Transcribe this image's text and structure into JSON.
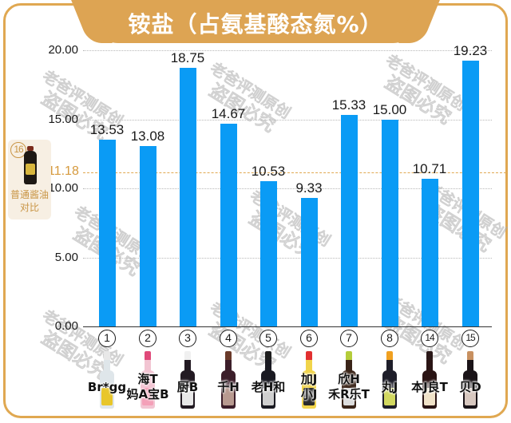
{
  "title": "铵盐（占氨基酸态氮%）",
  "watermark": {
    "line1": "老爸评测原创",
    "line2": "盗图必究"
  },
  "reference": {
    "number": "16",
    "label_line1": "普通酱油",
    "label_line2": "对比",
    "value": 11.18,
    "value_label": "11.18",
    "color": "#d69a3e"
  },
  "colors": {
    "bar": "#0a9bf5",
    "frame": "#e0a851",
    "title_bg": "#dda453"
  },
  "chart_data": {
    "type": "bar",
    "title": "铵盐（占氨基酸态氮%）",
    "xlabel": "",
    "ylabel": "",
    "ylim": [
      0,
      20
    ],
    "yticks": [
      "0.00",
      "5.00",
      "10.00",
      "15.00",
      "20.00"
    ],
    "grid": true,
    "categories": [
      "Br*gg",
      "海T 妈A宝B",
      "厨B",
      "千H",
      "老H和",
      "加J 小J",
      "欣H 禾R乐T",
      "丸J",
      "本J良T",
      "贝D"
    ],
    "category_numbers": [
      "1",
      "2",
      "3",
      "4",
      "5",
      "6",
      "7",
      "8",
      "14",
      "15"
    ],
    "values": [
      13.53,
      13.08,
      18.75,
      14.67,
      10.53,
      9.33,
      15.33,
      15.0,
      10.71,
      19.23
    ],
    "value_labels": [
      "13.53",
      "13.08",
      "18.75",
      "14.67",
      "10.53",
      "9.33",
      "15.33",
      "15.00",
      "10.71",
      "19.23"
    ],
    "reference_line": {
      "label": "普通酱油对比 (16)",
      "value": 11.18
    }
  },
  "products": [
    {
      "num": "1",
      "line1": "Br*gg",
      "line2": "",
      "cap": "#e8e8e8",
      "body": "#dfe6ea",
      "label": "#e8c62a"
    },
    {
      "num": "2",
      "line1": "海T",
      "line2": "妈A宝B",
      "cap": "#e04a7a",
      "body": "#f2c4d2",
      "label": "#f4a0b8"
    },
    {
      "num": "3",
      "line1": "厨B",
      "line2": "",
      "cap": "#f0f0f0",
      "body": "#221a22",
      "label": "#e8e8e8"
    },
    {
      "num": "4",
      "line1": "千H",
      "line2": "",
      "cap": "#6a3a2a",
      "body": "#3c1e2a",
      "label": "#b89a90"
    },
    {
      "num": "5",
      "line1": "老H和",
      "line2": "",
      "cap": "#1e1e1e",
      "body": "#1a1a22",
      "label": "#cfcfcf"
    },
    {
      "num": "6",
      "line1": "加J",
      "line2": "小J",
      "cap": "#e23030",
      "body": "#f1d44a",
      "label": "#2a2a2a"
    },
    {
      "num": "7",
      "line1": "欣H",
      "line2": "禾R乐T",
      "cap": "#b4cc3a",
      "body": "#3a2418",
      "label": "#dcdcdc"
    },
    {
      "num": "8",
      "line1": "丸J",
      "line2": "",
      "cap": "#f0a020",
      "body": "#1e1e2a",
      "label": "#d2d860"
    },
    {
      "num": "14",
      "line1": "本J良T",
      "line2": "",
      "cap": "#2a1818",
      "body": "#2a1414",
      "label": "#f0e2c8"
    },
    {
      "num": "15",
      "line1": "贝D",
      "line2": "",
      "cap": "#c89060",
      "body": "#1a1418",
      "label": "#d8c8c0"
    }
  ]
}
